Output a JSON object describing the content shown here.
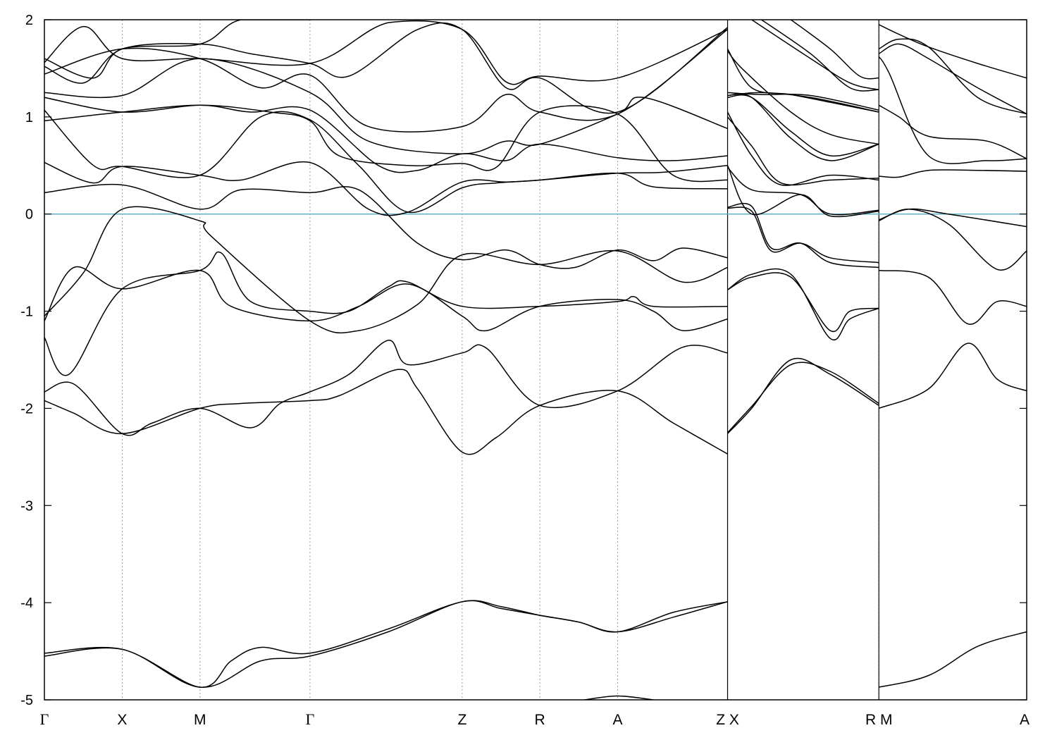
{
  "chart_data": {
    "type": "line",
    "title": "",
    "xlabel": "",
    "ylabel": "",
    "ylim": [
      -5,
      2
    ],
    "yticks": [
      -5,
      -4,
      -3,
      -2,
      -1,
      0,
      1,
      2
    ],
    "ytick_labels": [
      "-5",
      "-4",
      "-3",
      "-2",
      "-1",
      "0",
      "1",
      "2"
    ],
    "xlim": [
      0,
      1
    ],
    "kpoints": [
      {
        "label": "Γ",
        "pos": 0.0,
        "font": "serif"
      },
      {
        "label": "X",
        "pos": 0.0792
      },
      {
        "label": "M",
        "pos": 0.1584
      },
      {
        "label": "Γ",
        "pos": 0.2704,
        "font": "serif"
      },
      {
        "label": "Z",
        "pos": 0.4253
      },
      {
        "label": "R",
        "pos": 0.5044
      },
      {
        "label": "A",
        "pos": 0.5836
      },
      {
        "label": "Z X",
        "pos": 0.6955
      },
      {
        "label": "R M",
        "pos": 0.8495
      },
      {
        "label": "A",
        "pos": 1.0
      }
    ],
    "path_breaks": [
      0.6955,
      0.8495
    ],
    "fermi_level": 0,
    "grid": "vertical dashed at k-points",
    "series_color": "#000000",
    "fermi_color": "#5fb3c9",
    "series": [
      {
        "x": [
          0,
          0.0792,
          0.1584,
          0.22,
          0.2704,
          0.35,
          0.4253,
          0.4648,
          0.5044,
          0.544,
          0.5836,
          0.64,
          0.6955
        ],
        "y": [
          -4.55,
          -4.48,
          -4.87,
          -4.6,
          -4.55,
          -4.3,
          -3.99,
          -4.06,
          -4.13,
          -4.2,
          -4.3,
          -4.15,
          -3.99
        ]
      },
      {
        "x": [
          0,
          0.0792,
          0.1584,
          0.19,
          0.22,
          0.2704,
          0.35,
          0.4253,
          0.4648,
          0.5044,
          0.544,
          0.5836,
          0.64,
          0.6955
        ],
        "y": [
          -4.52,
          -4.48,
          -4.87,
          -4.6,
          -4.46,
          -4.52,
          -4.27,
          -3.99,
          -4.04,
          -4.13,
          -4.2,
          -4.3,
          -4.1,
          -3.99
        ]
      },
      {
        "x": [
          0.55,
          0.5836,
          0.62
        ],
        "y": [
          -5.0,
          -4.96,
          -5.0
        ]
      },
      {
        "x": [
          0,
          0.03,
          0.0792,
          0.1584,
          0.2,
          0.2704,
          0.3,
          0.36,
          0.38,
          0.4253,
          0.46,
          0.5044,
          0.5836,
          0.64,
          0.6955
        ],
        "y": [
          -1.92,
          -2.05,
          -2.26,
          -2.0,
          -1.95,
          -1.92,
          -1.87,
          -1.6,
          -1.8,
          -2.45,
          -2.3,
          -1.97,
          -1.82,
          -2.15,
          -2.47
        ]
      },
      {
        "x": [
          0,
          0.03,
          0.0792,
          0.11,
          0.1584,
          0.21,
          0.24,
          0.2704,
          0.31,
          0.35,
          0.37,
          0.4253,
          0.45,
          0.5044,
          0.5836,
          0.65,
          0.6955
        ],
        "y": [
          -1.83,
          -1.75,
          -2.26,
          -2.15,
          -2.0,
          -2.2,
          -1.95,
          -1.83,
          -1.65,
          -1.3,
          -1.55,
          -1.43,
          -1.38,
          -1.97,
          -1.82,
          -1.37,
          -1.43
        ]
      },
      {
        "x": [
          0,
          0.025,
          0.0792,
          0.1584,
          0.18,
          0.21,
          0.2704,
          0.31,
          0.35,
          0.37,
          0.4253,
          0.5044,
          0.5836,
          0.6,
          0.62,
          0.6955
        ],
        "y": [
          -1.27,
          -1.65,
          -0.77,
          -0.58,
          -0.4,
          -0.9,
          -1.0,
          -1.0,
          -0.75,
          -0.7,
          -0.95,
          -0.95,
          -0.9,
          -0.85,
          -0.95,
          -0.95
        ]
      },
      {
        "x": [
          0,
          0.03,
          0.0792,
          0.1584,
          0.19,
          0.2704,
          0.32,
          0.37,
          0.4253,
          0.45,
          0.5044,
          0.5836,
          0.62,
          0.65,
          0.6955
        ],
        "y": [
          -1.1,
          -0.55,
          -0.77,
          -0.58,
          -0.95,
          -1.1,
          -0.95,
          -0.72,
          -1.05,
          -1.2,
          -0.95,
          -0.88,
          -1.0,
          -1.2,
          -1.08
        ]
      },
      {
        "x": [
          0,
          0.04,
          0.0792,
          0.1584,
          0.17,
          0.2704,
          0.32,
          0.38,
          0.4253,
          0.5044,
          0.5836,
          0.65,
          0.6955
        ],
        "y": [
          -1.05,
          -0.6,
          0.05,
          -0.07,
          -0.23,
          -1.1,
          -1.2,
          -0.93,
          -0.42,
          -0.52,
          -0.38,
          -0.7,
          -0.55
        ]
      },
      {
        "x": [
          0,
          0.0792,
          0.1584,
          0.2,
          0.2704,
          0.32,
          0.38,
          0.4253,
          0.47,
          0.5044,
          0.54,
          0.5836,
          0.62,
          0.65,
          0.6955
        ],
        "y": [
          0.22,
          0.3,
          0.05,
          0.25,
          0.22,
          0.25,
          -0.3,
          -0.47,
          -0.37,
          -0.52,
          -0.55,
          -0.37,
          -0.48,
          -0.35,
          -0.45
        ]
      },
      {
        "x": [
          0,
          0.05,
          0.0792,
          0.1584,
          0.2,
          0.2704,
          0.33,
          0.37,
          0.4253,
          0.47,
          0.5044,
          0.5836,
          0.63,
          0.6955
        ],
        "y": [
          0.53,
          0.32,
          0.49,
          0.4,
          0.35,
          0.53,
          0.05,
          0.02,
          0.33,
          0.33,
          0.35,
          0.42,
          0.43,
          0.5
        ]
      },
      {
        "x": [
          0,
          0.05,
          0.0792,
          0.1584,
          0.22,
          0.2704,
          0.32,
          0.37,
          0.4253,
          0.46,
          0.5044,
          0.5836,
          0.62,
          0.6955
        ],
        "y": [
          1.07,
          0.5,
          0.49,
          0.4,
          1.0,
          0.97,
          0.5,
          0.02,
          0.27,
          0.32,
          0.35,
          0.42,
          0.28,
          0.26
        ]
      },
      {
        "x": [
          0,
          0.0792,
          0.1584,
          0.23,
          0.2704,
          0.3,
          0.37,
          0.4253,
          0.46,
          0.5044,
          0.5836,
          0.64,
          0.6955
        ],
        "y": [
          0.96,
          1.05,
          1.12,
          1.05,
          0.96,
          0.6,
          0.5,
          0.52,
          0.48,
          1.05,
          1.03,
          0.4,
          0.35
        ]
      },
      {
        "x": [
          0,
          0.0792,
          0.1584,
          0.21,
          0.2704,
          0.34,
          0.38,
          0.4253,
          0.47,
          0.5044,
          0.5836,
          0.64,
          0.6955
        ],
        "y": [
          1.2,
          1.05,
          1.12,
          1.05,
          1.07,
          0.5,
          0.45,
          0.62,
          0.55,
          0.72,
          0.58,
          0.55,
          0.6
        ]
      },
      {
        "x": [
          0,
          0.0792,
          0.1584,
          0.2704,
          0.33,
          0.4253,
          0.47,
          0.5044,
          0.5836,
          0.61,
          0.6955
        ],
        "y": [
          1.25,
          1.22,
          1.6,
          1.25,
          0.75,
          0.62,
          0.75,
          0.72,
          1.03,
          1.2,
          0.88
        ]
      },
      {
        "x": [
          0,
          0.0792,
          0.1584,
          0.22,
          0.2704,
          0.33,
          0.4253,
          0.47,
          0.5044,
          0.5836,
          0.6955
        ],
        "y": [
          1.44,
          1.7,
          1.6,
          1.3,
          1.43,
          0.9,
          0.9,
          1.23,
          1.05,
          1.03,
          1.9
        ]
      },
      {
        "x": [
          0,
          0.04,
          0.0792,
          0.1584,
          0.21,
          0.2704,
          0.31,
          0.38,
          0.4253,
          0.47,
          0.5044,
          0.5836,
          0.6955
        ],
        "y": [
          1.52,
          1.35,
          1.7,
          1.75,
          1.65,
          1.55,
          1.42,
          1.9,
          1.9,
          1.3,
          1.4,
          1.05,
          1.92
        ]
      },
      {
        "x": [
          0,
          0.04,
          0.0792,
          0.1584,
          0.2704,
          0.35,
          0.4253,
          0.47,
          0.5044,
          0.5836,
          0.6955
        ],
        "y": [
          1.56,
          1.93,
          1.6,
          1.6,
          1.55,
          1.97,
          1.9,
          1.36,
          1.42,
          1.4,
          1.9
        ]
      },
      {
        "x": [
          0,
          0.05,
          0.0792,
          0.1584,
          0.2,
          0.2704
        ],
        "y": [
          1.6,
          1.4,
          1.7,
          1.75,
          2.0,
          2.0
        ]
      },
      {
        "x": [
          0.6955,
          0.72,
          0.76,
          0.8,
          0.8495
        ],
        "y": [
          -2.26,
          -2.0,
          -1.5,
          -1.65,
          -1.97
        ]
      },
      {
        "x": [
          0.6955,
          0.72,
          0.76,
          0.8,
          0.8495
        ],
        "y": [
          -2.25,
          -1.98,
          -1.55,
          -1.62,
          -1.95
        ]
      },
      {
        "x": [
          0.6955,
          0.72,
          0.76,
          0.8,
          0.82,
          0.8495
        ],
        "y": [
          -0.78,
          -0.65,
          -0.65,
          -1.2,
          -1.0,
          -0.97
        ]
      },
      {
        "x": [
          0.6955,
          0.72,
          0.76,
          0.8,
          0.82,
          0.8495
        ],
        "y": [
          -0.78,
          -0.62,
          -0.62,
          -1.28,
          -1.08,
          -0.97
        ]
      },
      {
        "x": [
          0.6955,
          0.72,
          0.74,
          0.77,
          0.8,
          0.8495
        ],
        "y": [
          0.06,
          0.03,
          -0.38,
          -0.3,
          -0.45,
          -0.5
        ]
      },
      {
        "x": [
          0.6955,
          0.72,
          0.74,
          0.77,
          0.8,
          0.8495
        ],
        "y": [
          0.07,
          0.08,
          -0.35,
          -0.3,
          -0.5,
          -0.55
        ]
      },
      {
        "x": [
          0.6955,
          0.72,
          0.77,
          0.8,
          0.8495
        ],
        "y": [
          0.5,
          0.0,
          0.2,
          -0.02,
          0.03
        ]
      },
      {
        "x": [
          0.6955,
          0.72,
          0.77,
          0.8,
          0.8495
        ],
        "y": [
          0.48,
          0.25,
          0.2,
          0.0,
          0.04
        ]
      },
      {
        "x": [
          0.6955,
          0.72,
          0.75,
          0.8,
          0.8495
        ],
        "y": [
          1.05,
          0.6,
          0.3,
          0.4,
          0.35
        ]
      },
      {
        "x": [
          0.6955,
          0.72,
          0.75,
          0.8,
          0.8495
        ],
        "y": [
          1.0,
          0.7,
          0.32,
          0.35,
          0.37
        ]
      },
      {
        "x": [
          0.6955,
          0.72,
          0.76,
          0.8,
          0.8495
        ],
        "y": [
          1.2,
          1.2,
          0.85,
          0.6,
          0.72
        ]
      },
      {
        "x": [
          0.6955,
          0.72,
          0.76,
          0.8,
          0.8495
        ],
        "y": [
          1.22,
          1.2,
          0.78,
          0.55,
          0.72
        ]
      },
      {
        "x": [
          0.6955,
          0.73,
          0.78,
          0.8495
        ],
        "y": [
          1.25,
          1.23,
          1.22,
          1.07
        ]
      },
      {
        "x": [
          0.6955,
          0.73,
          0.78,
          0.8495
        ],
        "y": [
          1.22,
          1.25,
          1.2,
          1.05
        ]
      },
      {
        "x": [
          0.6955,
          0.72,
          0.76,
          0.8,
          0.8495
        ],
        "y": [
          1.7,
          1.3,
          1.23,
          1.15,
          1.05
        ]
      },
      {
        "x": [
          0.6955,
          0.71,
          0.76,
          0.8,
          0.8495
        ],
        "y": [
          1.68,
          1.5,
          1.05,
          0.82,
          0.72
        ]
      },
      {
        "x": [
          0.72,
          0.78,
          0.82,
          0.8495
        ],
        "y": [
          2.0,
          1.6,
          1.35,
          1.28
        ]
      },
      {
        "x": [
          0.73,
          0.78,
          0.82,
          0.8495
        ],
        "y": [
          2.0,
          1.65,
          1.3,
          1.28
        ]
      },
      {
        "x": [
          0.76,
          0.8,
          0.83,
          0.8495
        ],
        "y": [
          2.0,
          1.7,
          1.42,
          1.4
        ]
      },
      {
        "x": [
          0.8495,
          0.9,
          0.95,
          1.0
        ],
        "y": [
          -4.87,
          -4.75,
          -4.45,
          -4.3
        ]
      },
      {
        "x": [
          0.8495,
          0.9,
          0.94,
          0.97,
          1.0
        ],
        "y": [
          -2.0,
          -1.8,
          -1.33,
          -1.7,
          -1.82
        ]
      },
      {
        "x": [
          0.8495,
          0.9,
          0.94,
          0.97,
          1.0
        ],
        "y": [
          -0.58,
          -0.65,
          -1.13,
          -0.9,
          -0.95
        ]
      },
      {
        "x": [
          0.8495,
          0.88,
          0.92,
          0.97,
          1.0
        ],
        "y": [
          -0.07,
          0.05,
          -0.1,
          -0.57,
          -0.38
        ]
      },
      {
        "x": [
          0.8495,
          0.88,
          0.92,
          1.0
        ],
        "y": [
          -0.06,
          0.05,
          0.0,
          -0.13
        ]
      },
      {
        "x": [
          0.8495,
          0.87,
          0.9,
          0.95,
          1.0
        ],
        "y": [
          0.39,
          0.38,
          0.45,
          0.45,
          0.44
        ]
      },
      {
        "x": [
          0.8495,
          0.86,
          0.9,
          0.96,
          1.0
        ],
        "y": [
          1.62,
          1.45,
          0.6,
          0.55,
          0.57
        ]
      },
      {
        "x": [
          0.8495,
          0.87,
          0.9,
          0.96,
          1.0
        ],
        "y": [
          1.12,
          1.0,
          0.8,
          0.75,
          0.57
        ]
      },
      {
        "x": [
          0.8495,
          0.87,
          0.9,
          0.95,
          1.0
        ],
        "y": [
          1.65,
          1.75,
          1.6,
          1.3,
          1.03
        ]
      },
      {
        "x": [
          0.8495,
          0.87,
          0.9,
          0.95,
          1.0
        ],
        "y": [
          1.7,
          1.8,
          1.72,
          1.2,
          1.03
        ]
      },
      {
        "x": [
          0.8495,
          0.87,
          0.9,
          0.95,
          1.0
        ],
        "y": [
          1.95,
          1.85,
          1.72,
          1.55,
          1.4
        ]
      }
    ]
  }
}
